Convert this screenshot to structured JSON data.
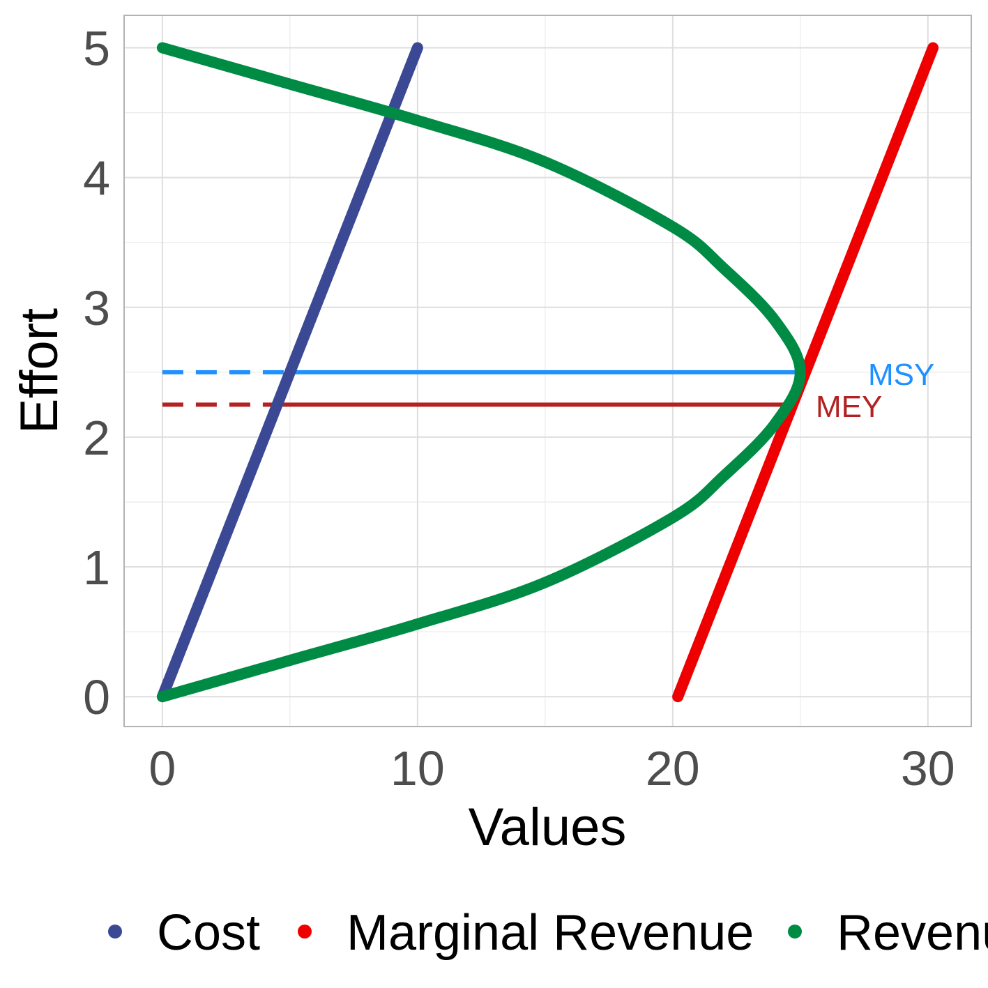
{
  "chart_data": {
    "type": "line",
    "xlabel": "Values",
    "ylabel": "Effort",
    "xlim": [
      -1.5,
      31.7
    ],
    "ylim": [
      -0.23,
      5.25
    ],
    "x_ticks": [
      0,
      10,
      20,
      30
    ],
    "y_ticks": [
      0,
      1,
      2,
      3,
      4,
      5
    ],
    "grid": true,
    "legend_position": "bottom",
    "series": [
      {
        "name": "Cost",
        "color": "#3B4994",
        "x": [
          0,
          10
        ],
        "y": [
          0,
          5
        ]
      },
      {
        "name": "Marginal Revenue",
        "color": "#EE0000",
        "x": [
          20.2,
          30.2
        ],
        "y": [
          0,
          5
        ]
      },
      {
        "name": "Revenue",
        "color": "#008B45",
        "x": [
          0,
          5,
          10,
          15,
          20,
          22,
          24,
          25,
          24,
          22,
          20,
          15,
          10,
          5,
          0
        ],
        "y": [
          0,
          0.28,
          0.56,
          0.88,
          1.38,
          1.7,
          2.1,
          2.5,
          2.9,
          3.3,
          3.62,
          4.12,
          4.44,
          4.72,
          5
        ]
      }
    ],
    "reference_lines": [
      {
        "label": "MSY",
        "color": "#1E90FF",
        "y": 2.5,
        "x_dashed": [
          0,
          5
        ],
        "x_solid": [
          5,
          25
        ]
      },
      {
        "label": "MEY",
        "color": "#B22222",
        "y": 2.25,
        "x_dashed": [
          0,
          4.5
        ],
        "x_solid": [
          4.5,
          24.7
        ]
      }
    ]
  }
}
